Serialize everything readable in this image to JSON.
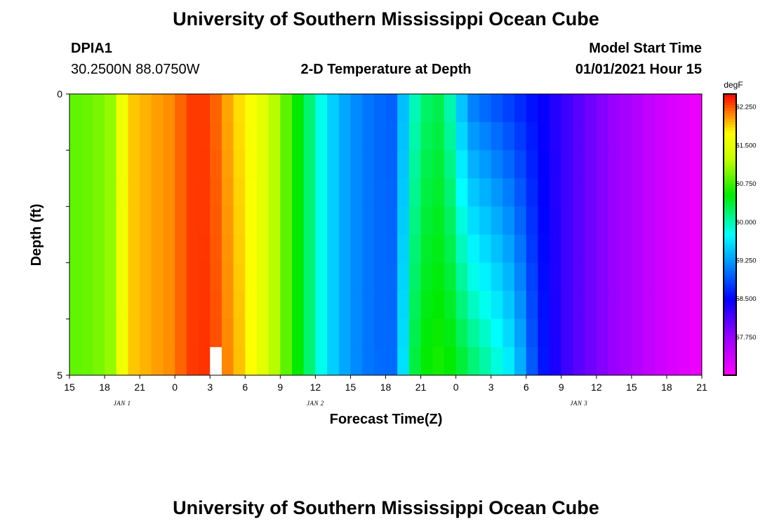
{
  "page_title": "University of Southern Mississippi Ocean Cube",
  "footer_title": "University of Southern Mississippi Ocean Cube",
  "station_id": "DPIA1",
  "station_coords": "30.2500N 88.0750W",
  "model_label": "Model Start Time",
  "model_time": "01/01/2021 Hour 15",
  "colorbar": {
    "unit": "degF",
    "min": 57.0,
    "max": 62.5,
    "tick_values": [
      62.25,
      61.5,
      60.75,
      60.0,
      59.25,
      58.5,
      57.75
    ],
    "tick_labels": [
      "62.250",
      "61.500",
      "60.750",
      "60.000",
      "59.250",
      "58.500",
      "57.750"
    ]
  },
  "chart_data": {
    "type": "heatmap",
    "title": "2-D Temperature at Depth",
    "xlabel": "Forecast Time(Z)",
    "ylabel": "Depth (ft)",
    "x_range_hours": [
      0,
      54
    ],
    "y_range": [
      0,
      5
    ],
    "y_axis_inverted": true,
    "x_tick_labels": [
      "15",
      "18",
      "21",
      "0",
      "3",
      "6",
      "9",
      "12",
      "15",
      "18",
      "21",
      "0",
      "3",
      "6",
      "9",
      "12",
      "15",
      "18",
      "21"
    ],
    "x_tick_hours": [
      0,
      3,
      6,
      9,
      12,
      15,
      18,
      21,
      24,
      27,
      30,
      33,
      36,
      39,
      42,
      45,
      48,
      51,
      54
    ],
    "y_tick_labels": [
      "0",
      "5"
    ],
    "y_tick_values": [
      0,
      5
    ],
    "day_labels": [
      {
        "text": "JAN 1",
        "hour": 4.5
      },
      {
        "text": "JAN 2",
        "hour": 21
      },
      {
        "text": "JAN 3",
        "hour": 43.5
      }
    ],
    "depth_layers": [
      0.25,
      0.75,
      1.25,
      1.75,
      2.25,
      2.75,
      3.25,
      3.75,
      4.25,
      4.75
    ],
    "surface_profile": {
      "hours": [
        0,
        2,
        4,
        4.5,
        5.5,
        7,
        9,
        10,
        11,
        12,
        13,
        14,
        15,
        16,
        17,
        18,
        19,
        20,
        21,
        22,
        24,
        26,
        27.5,
        28.5,
        29,
        30,
        31,
        32,
        33,
        34,
        36,
        38,
        40,
        42,
        44,
        46,
        48,
        50,
        52,
        54
      ],
      "values": [
        60.85,
        60.9,
        61.1,
        61.6,
        61.9,
        62.0,
        62.1,
        62.3,
        62.35,
        62.3,
        62.1,
        61.9,
        61.75,
        61.6,
        61.35,
        61.0,
        60.7,
        60.35,
        60.0,
        59.6,
        59.2,
        59.0,
        58.95,
        59.4,
        59.8,
        60.1,
        60.3,
        60.25,
        59.7,
        59.1,
        58.9,
        58.7,
        58.5,
        58.25,
        58.0,
        57.8,
        57.6,
        57.4,
        57.25,
        57.1
      ]
    },
    "deep_profile": {
      "hours": [
        0,
        2,
        4,
        4.5,
        5.5,
        7,
        9,
        10,
        11,
        12,
        13,
        14,
        15,
        16,
        17,
        18,
        19,
        20,
        21,
        22,
        24,
        26,
        27.5,
        28.5,
        29,
        30,
        31,
        32,
        33,
        34,
        36,
        38,
        40,
        42,
        44,
        46,
        48,
        50,
        52,
        54
      ],
      "values": [
        60.85,
        60.9,
        61.1,
        61.6,
        61.9,
        62.0,
        62.1,
        62.3,
        62.35,
        62.35,
        62.2,
        62.0,
        61.85,
        61.6,
        61.35,
        61.0,
        60.7,
        60.35,
        60.0,
        59.6,
        59.2,
        59.0,
        59.0,
        59.6,
        60.2,
        60.5,
        60.6,
        60.6,
        60.5,
        60.3,
        60.0,
        59.6,
        58.7,
        58.25,
        58.0,
        57.8,
        57.6,
        57.4,
        57.25,
        57.1
      ]
    },
    "missing_cells": [
      {
        "hour": 12,
        "depth_layer": 4.75
      }
    ]
  }
}
